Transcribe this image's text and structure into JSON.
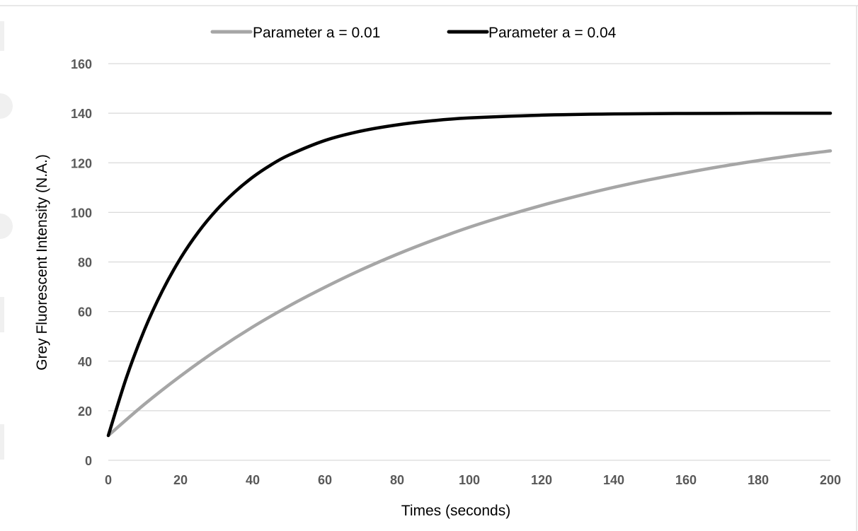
{
  "chart_data": {
    "type": "line",
    "title": "",
    "xlabel": "Times (seconds)",
    "ylabel": "Grey Fluorescent Intensity (N.A.)",
    "xlim": [
      0,
      200
    ],
    "ylim": [
      0,
      160
    ],
    "x_ticks": [
      0,
      20,
      40,
      60,
      80,
      100,
      120,
      140,
      160,
      180,
      200
    ],
    "y_ticks": [
      0,
      20,
      40,
      60,
      80,
      100,
      120,
      140,
      160
    ],
    "grid": true,
    "legend_position": "top",
    "series": [
      {
        "name": "Parameter a = 0.01",
        "color": "#a6a6a6",
        "x": [
          0,
          10,
          20,
          30,
          40,
          50,
          60,
          70,
          80,
          90,
          100,
          110,
          120,
          130,
          140,
          150,
          160,
          170,
          180,
          190,
          200
        ],
        "y": [
          10,
          22.6,
          34,
          44.4,
          53.8,
          62.2,
          69.8,
          76.8,
          83.1,
          88.8,
          94,
          98.6,
          102.8,
          106.6,
          110.1,
          113.2,
          116,
          118.6,
          120.9,
          123,
          124.8
        ]
      },
      {
        "name": "Parameter a = 0.04",
        "color": "#000000",
        "x": [
          0,
          5,
          10,
          15,
          20,
          25,
          30,
          35,
          40,
          45,
          50,
          60,
          70,
          80,
          90,
          100,
          120,
          140,
          160,
          180,
          200
        ],
        "y": [
          10,
          33.3,
          52.6,
          68.4,
          81.5,
          92.2,
          101,
          108.2,
          114.2,
          119.1,
          123.1,
          129,
          132.8,
          135.3,
          137,
          138.1,
          139.2,
          139.7,
          139.9,
          140,
          140
        ]
      }
    ]
  }
}
